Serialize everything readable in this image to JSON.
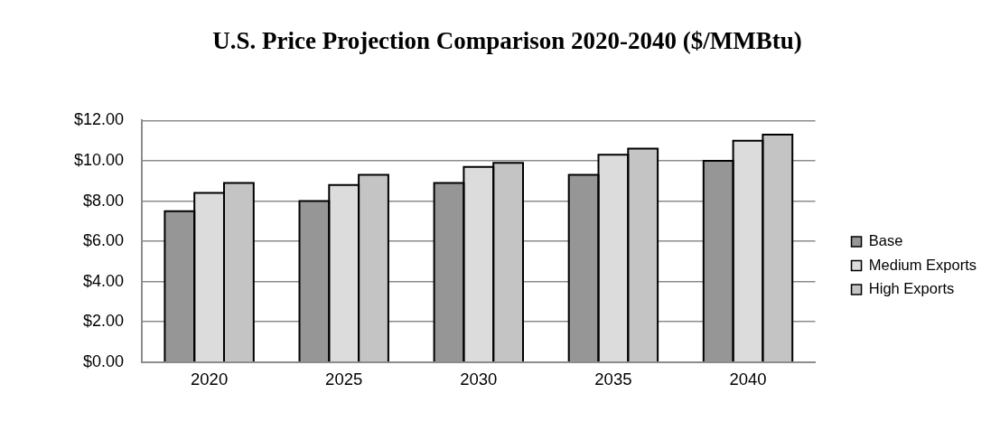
{
  "chart_data": {
    "type": "bar",
    "title": "U.S. Price Projection Comparison 2020-2040 ($/MMBtu)",
    "categories": [
      "2020",
      "2025",
      "2030",
      "2035",
      "2040"
    ],
    "series": [
      {
        "name": "Base",
        "color": "#969696",
        "values": [
          7.5,
          8.0,
          8.9,
          9.3,
          10.0
        ]
      },
      {
        "name": "Medium Exports",
        "color": "#dcdcdc",
        "values": [
          8.4,
          8.8,
          9.7,
          10.3,
          11.0
        ]
      },
      {
        "name": "High Exports",
        "color": "#c4c4c4",
        "values": [
          8.9,
          9.3,
          9.9,
          10.6,
          11.3
        ]
      }
    ],
    "ylim": [
      0,
      12
    ],
    "yticks": [
      {
        "value": 0,
        "label": "$0.00"
      },
      {
        "value": 2,
        "label": "$2.00"
      },
      {
        "value": 4,
        "label": "$4.00"
      },
      {
        "value": 6,
        "label": "$6.00"
      },
      {
        "value": 8,
        "label": "$8.00"
      },
      {
        "value": 10,
        "label": "$10.00"
      },
      {
        "value": 12,
        "label": "$12.00"
      }
    ],
    "grid": "y",
    "legend": "right"
  }
}
